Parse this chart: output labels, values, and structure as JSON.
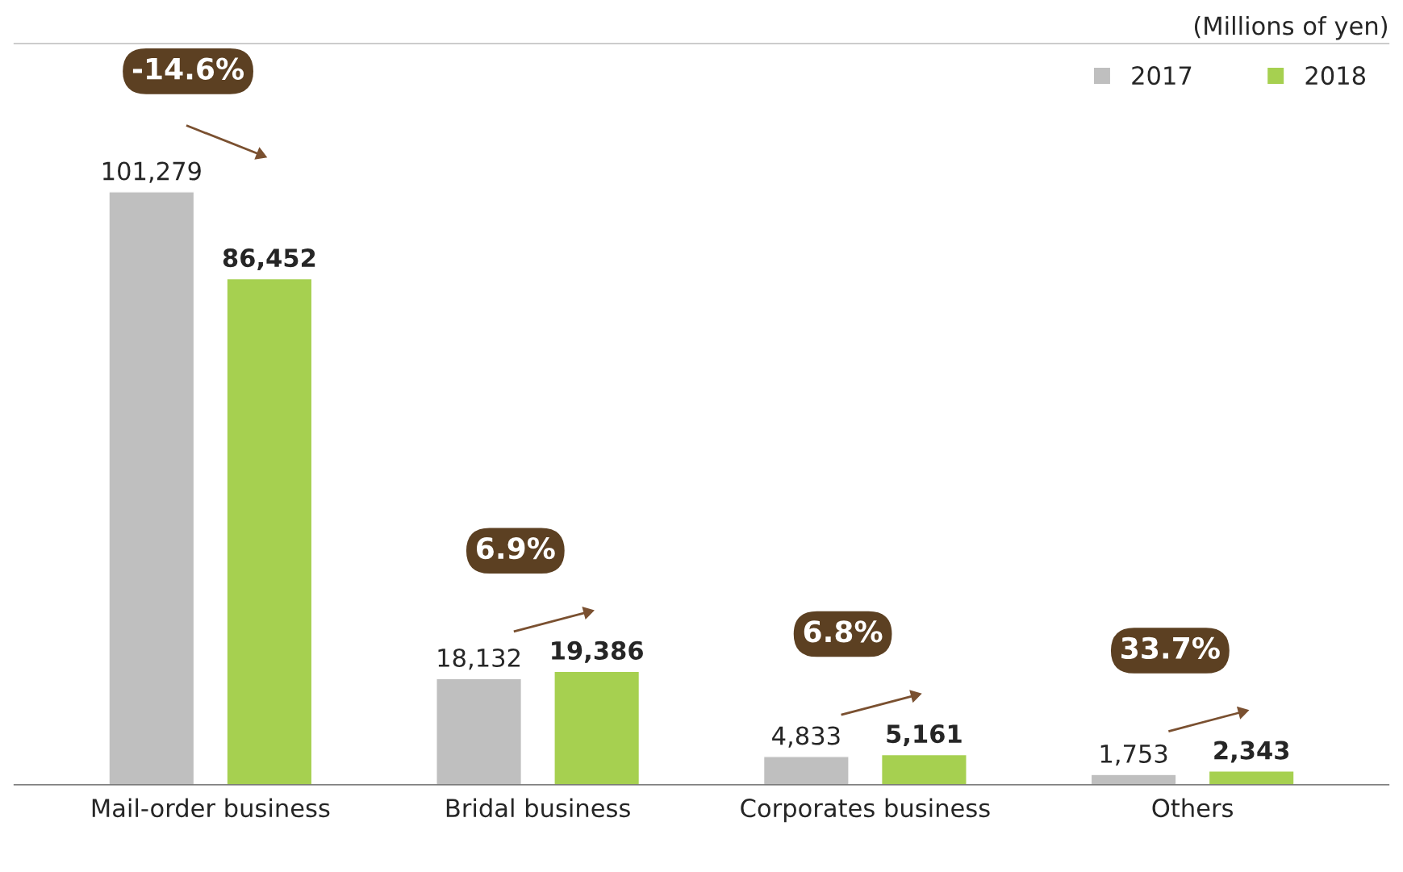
{
  "chart_data": {
    "type": "bar",
    "categories": [
      "Mail-order business",
      "Bridal business",
      "Corporates business",
      "Others"
    ],
    "series": [
      {
        "name": "2017",
        "color": "#bfbfbf",
        "values": [
          101279,
          18132,
          4833,
          1753
        ],
        "value_labels": [
          "101,279",
          "18,132",
          "4,833",
          "1,753"
        ]
      },
      {
        "name": "2018",
        "color": "#a6d050",
        "values": [
          86452,
          19386,
          5161,
          2343
        ],
        "value_labels": [
          "86,452",
          "19,386",
          "5,161",
          "2,343"
        ]
      }
    ],
    "legend": "top right",
    "grid": false,
    "annotations": [
      "(Millions of yen)",
      "-14.6%",
      "6.9%",
      "6.8%",
      "33.7%"
    ]
  }
}
